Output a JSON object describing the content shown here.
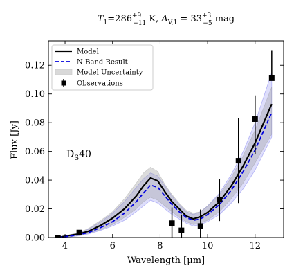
{
  "chart_data": {
    "type": "line",
    "title": {
      "pre": "T",
      "sub1": "1",
      "mid": "=286",
      "sup1": "+9",
      "subm1": "−11",
      "post1": " K, ",
      "a": "A",
      "sub2": "V,1",
      "mid2": " = 33",
      "sup2": "+3",
      "subm2": "−5",
      "post2": " mag"
    },
    "xlabel": "Wavelength [μm]",
    "ylabel": "Flux [Jy]",
    "annotation": {
      "pre": "D",
      "sub": "S",
      "post": "40"
    },
    "xlim": [
      3.3,
      13.2
    ],
    "ylim": [
      0,
      0.137
    ],
    "xticks": [
      4,
      6,
      8,
      10,
      12
    ],
    "yticks": [
      0.0,
      0.02,
      0.04,
      0.06,
      0.08,
      0.1,
      0.12
    ],
    "ytick_labels": [
      "0.00",
      "0.02",
      "0.04",
      "0.06",
      "0.08",
      "0.10",
      "0.12"
    ],
    "legend_position": "top-left",
    "legend": [
      "Model",
      "N-Band Result",
      "Model Uncertainty",
      "Observations"
    ],
    "colors": {
      "model": "#000000",
      "nband": "#0000dd",
      "band_gray": "#bbbbbb",
      "band_blue": "#6a6aee"
    },
    "model": {
      "x": [
        3.7,
        4.2,
        4.6,
        5.0,
        5.5,
        6.0,
        6.5,
        7.0,
        7.3,
        7.6,
        7.9,
        8.2,
        8.5,
        8.8,
        9.1,
        9.4,
        9.7,
        10.0,
        10.5,
        11.0,
        11.5,
        12.0,
        12.7
      ],
      "y": [
        0.0,
        0.0015,
        0.0025,
        0.0045,
        0.0085,
        0.0135,
        0.02,
        0.029,
        0.036,
        0.0415,
        0.0395,
        0.032,
        0.025,
        0.02,
        0.015,
        0.013,
        0.0145,
        0.0175,
        0.025,
        0.036,
        0.05,
        0.066,
        0.093
      ]
    },
    "nband": {
      "x": [
        3.7,
        4.2,
        4.6,
        5.0,
        5.5,
        6.0,
        6.5,
        7.0,
        7.3,
        7.6,
        7.9,
        8.2,
        8.5,
        8.8,
        9.1,
        9.4,
        9.7,
        10.0,
        10.5,
        11.0,
        11.5,
        12.0,
        12.7
      ],
      "y": [
        0.0,
        0.001,
        0.002,
        0.0035,
        0.007,
        0.011,
        0.017,
        0.025,
        0.031,
        0.0365,
        0.035,
        0.029,
        0.023,
        0.018,
        0.014,
        0.012,
        0.013,
        0.016,
        0.023,
        0.033,
        0.046,
        0.061,
        0.087
      ]
    },
    "model_uncertainty": {
      "x": [
        3.7,
        4.2,
        4.6,
        5.0,
        5.5,
        6.0,
        6.5,
        7.0,
        7.3,
        7.6,
        7.9,
        8.2,
        8.5,
        8.8,
        9.1,
        9.4,
        9.7,
        10.0,
        10.5,
        11.0,
        11.5,
        12.0,
        12.7
      ],
      "upper": [
        0.0005,
        0.002,
        0.0035,
        0.0065,
        0.012,
        0.018,
        0.027,
        0.038,
        0.045,
        0.049,
        0.046,
        0.037,
        0.03,
        0.024,
        0.019,
        0.017,
        0.018,
        0.022,
        0.03,
        0.042,
        0.057,
        0.075,
        0.105
      ],
      "lower": [
        0.0,
        0.0005,
        0.0015,
        0.003,
        0.0055,
        0.009,
        0.014,
        0.02,
        0.025,
        0.028,
        0.026,
        0.022,
        0.018,
        0.014,
        0.011,
        0.009,
        0.01,
        0.012,
        0.018,
        0.027,
        0.038,
        0.052,
        0.072
      ]
    },
    "nband_uncertainty": {
      "x": [
        3.7,
        4.2,
        4.6,
        5.0,
        5.5,
        6.0,
        6.5,
        7.0,
        7.3,
        7.6,
        7.9,
        8.2,
        8.5,
        8.8,
        9.1,
        9.4,
        9.7,
        10.0,
        10.5,
        11.0,
        11.5,
        12.0,
        12.7
      ],
      "upper": [
        0.0005,
        0.0018,
        0.003,
        0.006,
        0.011,
        0.017,
        0.025,
        0.035,
        0.041,
        0.045,
        0.043,
        0.036,
        0.029,
        0.023,
        0.018,
        0.016,
        0.018,
        0.022,
        0.031,
        0.044,
        0.06,
        0.08,
        0.115
      ],
      "lower": [
        0.0,
        0.0005,
        0.0012,
        0.0025,
        0.005,
        0.008,
        0.012,
        0.018,
        0.022,
        0.026,
        0.024,
        0.02,
        0.016,
        0.013,
        0.01,
        0.008,
        0.009,
        0.011,
        0.016,
        0.024,
        0.034,
        0.047,
        0.07
      ]
    },
    "observations": {
      "x": [
        3.7,
        4.6,
        8.5,
        8.9,
        9.7,
        10.5,
        11.3,
        12.0,
        12.7
      ],
      "y": [
        0.0,
        0.0035,
        0.01,
        0.005,
        0.008,
        0.0265,
        0.0535,
        0.0825,
        0.111
      ],
      "err_low": [
        0.0,
        0.0,
        0.01,
        0.005,
        0.008,
        0.015,
        0.0295,
        0.0245,
        0.0
      ],
      "err_high": [
        0.0,
        0.0,
        0.011,
        0.011,
        0.0115,
        0.0145,
        0.0295,
        0.0165,
        0.0195
      ]
    }
  }
}
